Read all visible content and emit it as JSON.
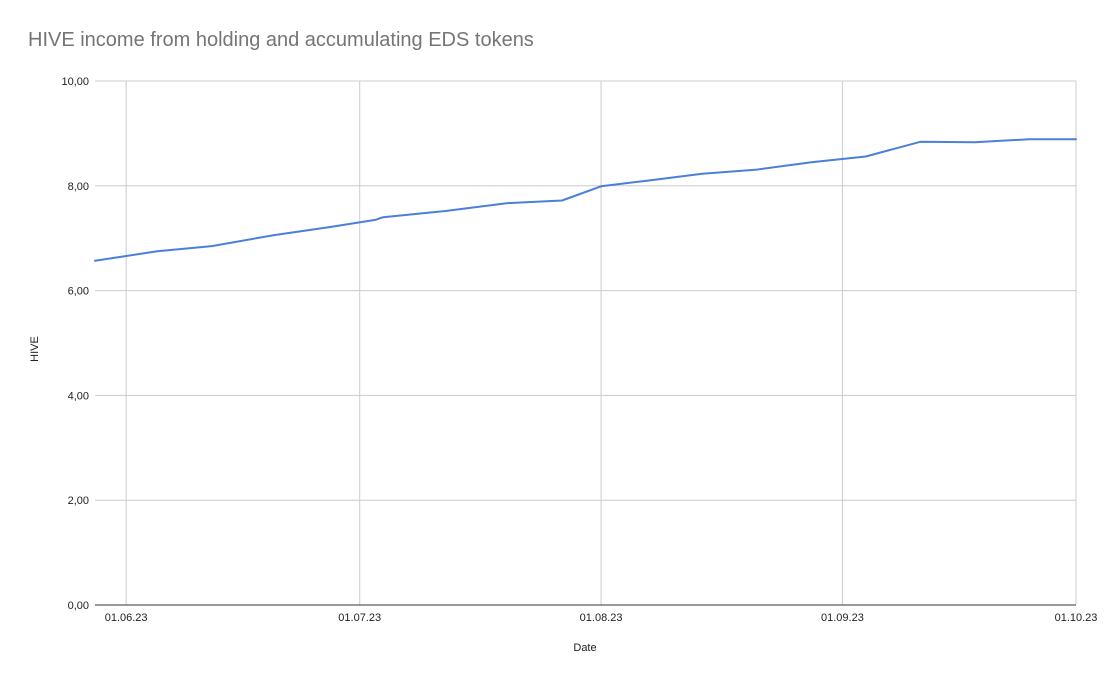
{
  "chart_data": {
    "type": "line",
    "title": "HIVE income from holding and accumulating EDS tokens",
    "xlabel": "Date",
    "ylabel": "HIVE",
    "ylim": [
      0,
      10
    ],
    "xlim": [
      "2023-05-28",
      "2023-10-01"
    ],
    "y_ticks": [
      "0,00",
      "2,00",
      "4,00",
      "6,00",
      "8,00",
      "10,00"
    ],
    "x_ticks": [
      {
        "date": "2023-06-01",
        "label": "01.06.23"
      },
      {
        "date": "2023-07-01",
        "label": "01.07.23"
      },
      {
        "date": "2023-08-01",
        "label": "01.08.23"
      },
      {
        "date": "2023-09-01",
        "label": "01.09.23"
      },
      {
        "date": "2023-10-01",
        "label": "01.10.23"
      }
    ],
    "grid": true,
    "series": [
      {
        "color": "#4a80d8",
        "points": [
          {
            "x": "2023-05-28",
            "y": 6.57
          },
          {
            "x": "2023-06-05",
            "y": 6.75
          },
          {
            "x": "2023-06-12",
            "y": 6.85
          },
          {
            "x": "2023-06-20",
            "y": 7.06
          },
          {
            "x": "2023-06-27",
            "y": 7.21
          },
          {
            "x": "2023-07-03",
            "y": 7.35
          },
          {
            "x": "2023-07-04",
            "y": 7.4
          },
          {
            "x": "2023-07-12",
            "y": 7.52
          },
          {
            "x": "2023-07-20",
            "y": 7.67
          },
          {
            "x": "2023-07-27",
            "y": 7.72
          },
          {
            "x": "2023-08-01",
            "y": 7.99
          },
          {
            "x": "2023-08-07",
            "y": 8.1
          },
          {
            "x": "2023-08-14",
            "y": 8.23
          },
          {
            "x": "2023-08-21",
            "y": 8.31
          },
          {
            "x": "2023-08-28",
            "y": 8.45
          },
          {
            "x": "2023-09-04",
            "y": 8.56
          },
          {
            "x": "2023-09-11",
            "y": 8.84
          },
          {
            "x": "2023-09-18",
            "y": 8.83
          },
          {
            "x": "2023-09-25",
            "y": 8.89
          },
          {
            "x": "2023-10-01",
            "y": 8.89
          }
        ]
      }
    ]
  }
}
